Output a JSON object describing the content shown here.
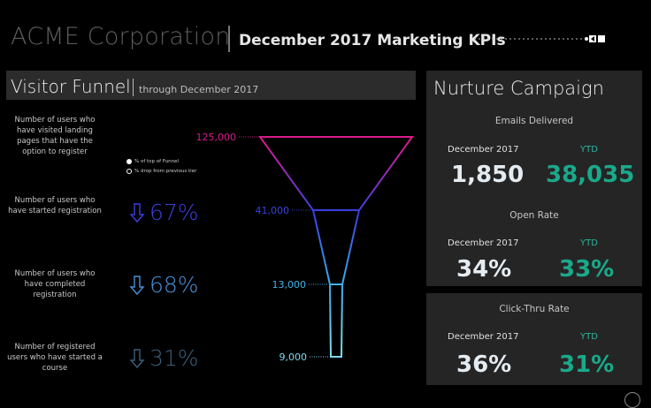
{
  "header": {
    "company": "ACME Corporation",
    "report_title": "December 2017 Marketing KPIs"
  },
  "funnel": {
    "title": "Visitor Funnel",
    "subtitle": "through December 2017",
    "descriptions": [
      "Number of users who have visited landing pages that have the option to register",
      "Number of users who have started registration",
      "Number of users who have completed registration",
      "Number of registered users who have started a course"
    ],
    "legend": [
      {
        "label": "% of top of Funnel",
        "color": "#ffffff"
      },
      {
        "label": "% drop from previous tier",
        "color": "#ffffff"
      }
    ],
    "drops": [
      "67%",
      "68%",
      "31%"
    ],
    "drop_colors": [
      "#3b3fe3",
      "#4a90d8",
      "#3b5f7a"
    ],
    "stages": [
      {
        "value": 125000,
        "label": "125,000",
        "color": "#d81b8a"
      },
      {
        "value": 41000,
        "label": "41,000",
        "color": "#3b3fe3"
      },
      {
        "value": 13000,
        "label": "13,000",
        "color": "#3fb4e8"
      },
      {
        "value": 9000,
        "label": "9,000",
        "color": "#7fd8e8"
      }
    ]
  },
  "nurture": {
    "title": "Nurture Campaign",
    "metrics": [
      {
        "name": "Emails Delivered",
        "period_label": "December 2017",
        "ytd_label": "YTD",
        "period_value": "1,850",
        "ytd_value": "38,035"
      },
      {
        "name": "Open Rate",
        "period_label": "December 2017",
        "ytd_label": "YTD",
        "period_value": "34%",
        "ytd_value": "33%"
      },
      {
        "name": "Click-Thru Rate",
        "period_label": "December 2017",
        "ytd_label": "YTD",
        "period_value": "36%",
        "ytd_value": "31%"
      }
    ]
  },
  "icons": [
    "slider-icon",
    "down-arrow-icon",
    "help-icon"
  ]
}
